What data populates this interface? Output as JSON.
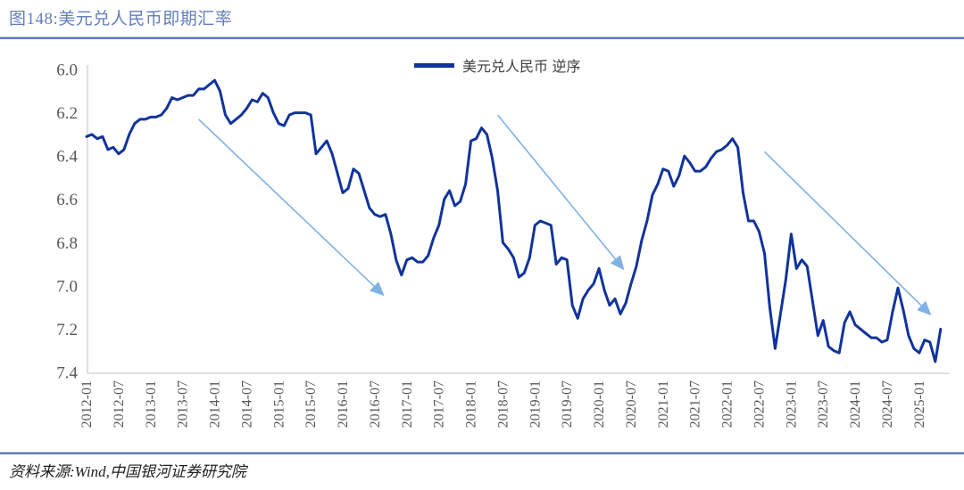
{
  "header": {
    "title": "图148:美元兑人民币即期汇率"
  },
  "legend": {
    "label": "美元兑人民币 逆序"
  },
  "footer": {
    "source": "资料来源:Wind,中国银河证券研究院"
  },
  "colors": {
    "title_blue": "#647EBE",
    "separator_blue": "#5E7CBD",
    "axis_gray": "#CCCCCC",
    "tick_label_gray": "#595959",
    "legend_text": "#3F3F3F",
    "source_text": "#1F1F1F"
  },
  "chart_data": {
    "type": "line",
    "title": "图148:美元兑人民币即期汇率",
    "xlabel": "",
    "ylabel": "",
    "grid": false,
    "legend_position": "top-center",
    "x_start": "2012-01",
    "x_step": "1 month",
    "x_end": "2025-05",
    "y_axis": {
      "min": 6.0,
      "max": 7.4,
      "inverted": true,
      "ticks": [
        "6.0",
        "6.2",
        "6.4",
        "6.6",
        "6.8",
        "7.0",
        "7.2",
        "7.4"
      ]
    },
    "x_axis": {
      "tick_interval_months": 6,
      "tick_labels": [
        "2012-01",
        "2012-07",
        "2013-01",
        "2013-07",
        "2014-01",
        "2014-07",
        "2015-01",
        "2015-07",
        "2016-01",
        "2016-07",
        "2017-01",
        "2017-07",
        "2018-01",
        "2018-07",
        "2019-01",
        "2019-07",
        "2020-01",
        "2020-07",
        "2021-01",
        "2021-07",
        "2022-01",
        "2022-07",
        "2023-01",
        "2023-07",
        "2024-01",
        "2024-07",
        "2025-01"
      ]
    },
    "series": [
      {
        "name": "美元兑人民币 逆序",
        "color": "#11339B",
        "values": [
          6.31,
          6.3,
          6.32,
          6.31,
          6.37,
          6.36,
          6.39,
          6.37,
          6.3,
          6.25,
          6.23,
          6.23,
          6.22,
          6.22,
          6.21,
          6.18,
          6.13,
          6.14,
          6.13,
          6.12,
          6.12,
          6.09,
          6.09,
          6.07,
          6.05,
          6.1,
          6.21,
          6.25,
          6.23,
          6.21,
          6.18,
          6.14,
          6.15,
          6.11,
          6.13,
          6.2,
          6.25,
          6.26,
          6.21,
          6.2,
          6.2,
          6.2,
          6.21,
          6.39,
          6.36,
          6.33,
          6.39,
          6.48,
          6.57,
          6.55,
          6.46,
          6.48,
          6.56,
          6.64,
          6.67,
          6.68,
          6.67,
          6.76,
          6.88,
          6.95,
          6.88,
          6.87,
          6.89,
          6.89,
          6.86,
          6.78,
          6.72,
          6.6,
          6.56,
          6.63,
          6.61,
          6.53,
          6.33,
          6.32,
          6.27,
          6.3,
          6.41,
          6.56,
          6.8,
          6.83,
          6.87,
          6.96,
          6.94,
          6.87,
          6.72,
          6.7,
          6.71,
          6.72,
          6.9,
          6.87,
          6.88,
          7.09,
          7.15,
          7.06,
          7.02,
          6.99,
          6.92,
          7.02,
          7.09,
          7.06,
          7.13,
          7.08,
          6.99,
          6.91,
          6.79,
          6.7,
          6.58,
          6.53,
          6.46,
          6.47,
          6.54,
          6.49,
          6.4,
          6.43,
          6.47,
          6.47,
          6.45,
          6.41,
          6.38,
          6.37,
          6.35,
          6.32,
          6.36,
          6.57,
          6.7,
          6.7,
          6.75,
          6.85,
          7.1,
          7.29,
          7.13,
          6.97,
          6.76,
          6.92,
          6.88,
          6.91,
          7.07,
          7.23,
          7.16,
          7.28,
          7.3,
          7.31,
          7.17,
          7.12,
          7.18,
          7.2,
          7.22,
          7.24,
          7.24,
          7.26,
          7.25,
          7.12,
          7.01,
          7.11,
          7.23,
          7.29,
          7.31,
          7.25,
          7.26,
          7.35,
          7.2
        ]
      }
    ],
    "annotations": {
      "arrow_color": "#7FB2E3",
      "arrows": [
        {
          "from_month": 21,
          "from_value": 6.23,
          "to_month": 55.5,
          "to_value": 7.04
        },
        {
          "from_month": 77,
          "from_value": 6.21,
          "to_month": 100.5,
          "to_value": 6.92
        },
        {
          "from_month": 127,
          "from_value": 6.38,
          "to_month": 158,
          "to_value": 7.13
        }
      ]
    }
  }
}
